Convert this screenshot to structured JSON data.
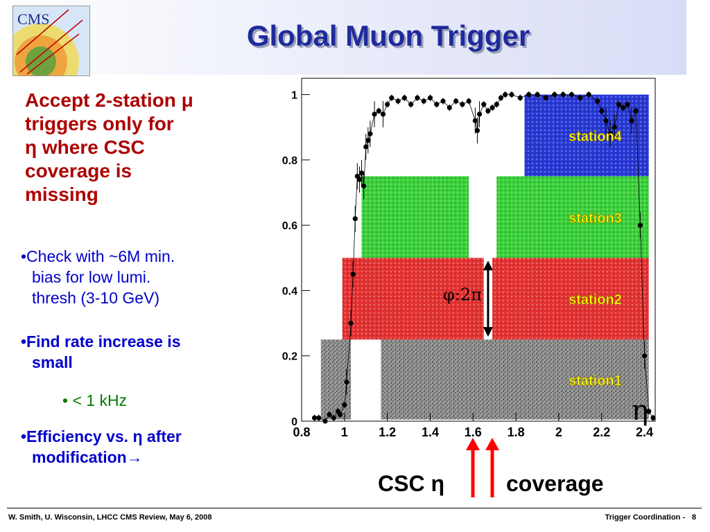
{
  "header": {
    "title": "Global Muon Trigger",
    "logo_text": "CMS"
  },
  "bullets": {
    "main_l1": "Accept 2-station μ",
    "main_l2": "triggers only for",
    "main_l3": "η where CSC",
    "main_l4": "coverage is",
    "main_l5": "missing",
    "sub1_l1": "•Check with ~6M min.",
    "sub1_l2": "bias for low lumi.",
    "sub1_l3": "thresh (3-10 GeV)",
    "sub2_l1": "•Find rate increase is",
    "sub2_l2": "small",
    "subsub": "•  < 1 kHz",
    "sub3_l1": "•Efficiency vs. η after",
    "sub3_l2": "modification→"
  },
  "bottom": {
    "csc": "CSC η",
    "coverage": "coverage"
  },
  "footer": {
    "left": "W. Smith, U. Wisconsin,  LHCC CMS Review, May 6, 2008",
    "right": "Trigger Coordination -",
    "page": "8"
  },
  "colors": {
    "title": "#1f2a9c",
    "main_bullet": "#ad0000",
    "sub_bullet": "#0000cc",
    "subsub": "#007a00",
    "station1": "#555555",
    "station2": "#e03030",
    "station3": "#33cc33",
    "station4": "#2233cc",
    "station_label": "#ffff00",
    "arrows": "#ff0000"
  },
  "chart_data": {
    "type": "scatter",
    "xlim": [
      0.8,
      2.45
    ],
    "ylim": [
      0,
      1.05
    ],
    "xticks": [
      "0.8",
      "1",
      "1.2",
      "1.4",
      "1.6",
      "1.8",
      "2",
      "2.2",
      "2.4"
    ],
    "xtick_values": [
      0.8,
      1.0,
      1.2,
      1.4,
      1.6,
      1.8,
      2.0,
      2.2,
      2.4
    ],
    "yticks": [
      "0",
      "0.2",
      "0.4",
      "0.6",
      "0.8",
      "1"
    ],
    "ytick_values": [
      0,
      0.2,
      0.4,
      0.6,
      0.8,
      1.0
    ],
    "axis_symbol": "η",
    "annotation": "φ:2π",
    "stations": [
      {
        "name": "station1",
        "segments": [
          [
            0.89,
            1.03
          ],
          [
            1.17,
            2.42
          ]
        ],
        "y": [
          0.005,
          0.25
        ]
      },
      {
        "name": "station2",
        "segments": [
          [
            0.99,
            1.65
          ],
          [
            1.69,
            2.42
          ]
        ],
        "y": [
          0.25,
          0.5
        ]
      },
      {
        "name": "station3",
        "segments": [
          [
            1.08,
            1.58
          ],
          [
            1.71,
            2.42
          ]
        ],
        "y": [
          0.5,
          0.75
        ]
      },
      {
        "name": "station4",
        "segments": [
          [
            1.84,
            2.42
          ]
        ],
        "y": [
          0.75,
          1.0
        ]
      }
    ],
    "efficiency": {
      "x": [
        0.86,
        0.88,
        0.91,
        0.93,
        0.95,
        0.97,
        0.98,
        1.0,
        1.01,
        1.03,
        1.04,
        1.05,
        1.06,
        1.07,
        1.08,
        1.09,
        1.1,
        1.11,
        1.12,
        1.14,
        1.16,
        1.18,
        1.2,
        1.22,
        1.25,
        1.28,
        1.31,
        1.34,
        1.37,
        1.4,
        1.43,
        1.46,
        1.49,
        1.52,
        1.55,
        1.58,
        1.61,
        1.62,
        1.63,
        1.65,
        1.67,
        1.69,
        1.71,
        1.73,
        1.75,
        1.78,
        1.82,
        1.86,
        1.9,
        1.94,
        1.98,
        2.02,
        2.06,
        2.1,
        2.14,
        2.18,
        2.2,
        2.22,
        2.24,
        2.26,
        2.28,
        2.3,
        2.32,
        2.34,
        2.36,
        2.38,
        2.4,
        2.42,
        2.44
      ],
      "y": [
        0.01,
        0.01,
        0.0,
        0.02,
        0.01,
        0.03,
        0.02,
        0.05,
        0.12,
        0.3,
        0.45,
        0.62,
        0.75,
        0.74,
        0.76,
        0.72,
        0.84,
        0.86,
        0.88,
        0.94,
        0.95,
        0.94,
        0.97,
        0.99,
        0.98,
        0.99,
        0.97,
        0.99,
        0.98,
        0.99,
        0.97,
        0.98,
        0.96,
        0.98,
        0.97,
        0.98,
        0.92,
        0.89,
        0.94,
        0.97,
        0.95,
        0.96,
        0.97,
        0.99,
        1.0,
        1.0,
        0.99,
        1.0,
        1.0,
        0.99,
        1.0,
        1.0,
        1.0,
        0.99,
        1.0,
        0.98,
        0.95,
        0.92,
        0.88,
        0.9,
        0.97,
        0.96,
        0.97,
        0.92,
        0.95,
        0.6,
        0.2,
        0.03,
        0.01
      ]
    }
  }
}
